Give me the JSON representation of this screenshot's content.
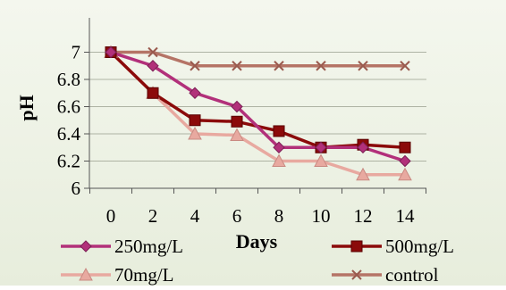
{
  "chart_data": {
    "type": "line",
    "title": "",
    "xlabel": "Days",
    "ylabel": "pH",
    "x": [
      0,
      2,
      4,
      6,
      8,
      10,
      12,
      14
    ],
    "xticks": [
      "0",
      "2",
      "4",
      "6",
      "8",
      "10",
      "12",
      "14"
    ],
    "ylim": [
      6,
      7.2
    ],
    "yticks": [
      "6",
      "6.2",
      "6.4",
      "6.6",
      "6.8",
      "7"
    ],
    "grid": "horizontal",
    "legend_position": "bottom",
    "series": [
      {
        "name": "250mg/L",
        "values": [
          7.0,
          6.9,
          6.7,
          6.6,
          6.3,
          6.3,
          6.3,
          6.2
        ],
        "color": "#b2307a",
        "marker": "diamond"
      },
      {
        "name": "500mg/L",
        "values": [
          7.0,
          6.7,
          6.5,
          6.49,
          6.42,
          6.3,
          6.32,
          6.3
        ],
        "color": "#8b0a0a",
        "marker": "square"
      },
      {
        "name": "70mg/L",
        "values": [
          7.0,
          6.7,
          6.4,
          6.39,
          6.2,
          6.2,
          6.1,
          6.1
        ],
        "color": "#e8a9a0",
        "marker": "triangle"
      },
      {
        "name": "control",
        "values": [
          7.0,
          7.0,
          6.9,
          6.9,
          6.9,
          6.9,
          6.9,
          6.9
        ],
        "color": "#b57466",
        "marker": "x"
      }
    ]
  }
}
